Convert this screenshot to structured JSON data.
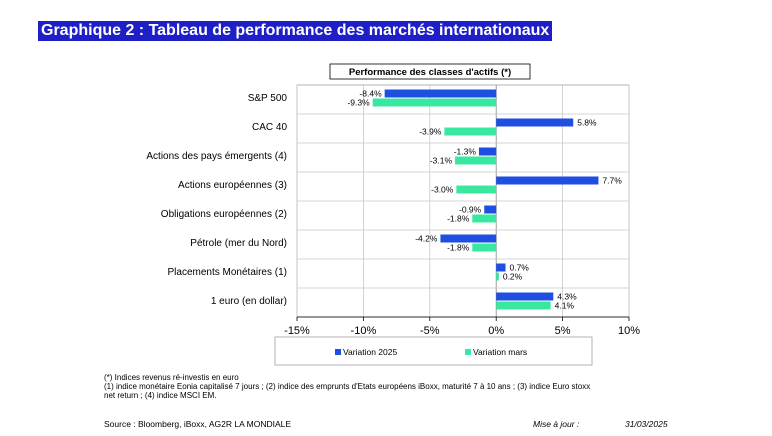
{
  "title": "Graphique 2 : Tableau de performance des marchés internationaux",
  "chart_data": {
    "type": "bar",
    "orientation": "horizontal",
    "title": "Performance des classes d'actifs (*)",
    "categories": [
      "S&P 500",
      "CAC 40",
      "Actions des pays émergents (4)",
      "Actions européennes (3)",
      "Obligations européennes (2)",
      "Pétrole (mer du Nord)",
      "Placements Monétaires (1)",
      "1 euro (en dollar)"
    ],
    "series": [
      {
        "name": "Variation 2025",
        "color": "#1f4fe0",
        "values": [
          -8.4,
          5.8,
          -1.3,
          7.7,
          -0.9,
          -4.2,
          0.7,
          4.3
        ],
        "labels": [
          "-8.4%",
          "5.8%",
          "-1.3%",
          "7.7%",
          "-0.9%",
          "-4.2%",
          "0.7%",
          "4.3%"
        ]
      },
      {
        "name": "Variation mars",
        "color": "#38e8a0",
        "values": [
          -9.3,
          -3.9,
          -3.1,
          -3.0,
          -1.8,
          -1.8,
          0.2,
          4.1
        ],
        "labels": [
          "-9.3%",
          "-3.9%",
          "-3.1%",
          "-3.0%",
          "-1.8%",
          "-1.8%",
          "0.2%",
          "4.1%"
        ]
      }
    ],
    "xlim": [
      -15,
      10
    ],
    "xticks": [
      -15,
      -10,
      -5,
      0,
      5,
      10
    ],
    "xtick_labels": [
      "-15%",
      "-10%",
      "-5%",
      "0%",
      "5%",
      "10%"
    ],
    "legend_position": "bottom"
  },
  "footnotes": {
    "line1": "(*) Indices revenus ré-investis en euro",
    "line2": "(1) indice monétaire Eonia capitalisé 7 jours ; (2) indice des emprunts d'Etats européens iBoxx, maturité 7 à 10 ans ; (3) indice Euro stoxx",
    "line3": "net return ; (4) indice MSCI EM."
  },
  "source": "Source : Bloomberg, iBoxx, AG2R LA MONDIALE",
  "update_label": "Mise à jour :",
  "update_date": "31/03/2025"
}
